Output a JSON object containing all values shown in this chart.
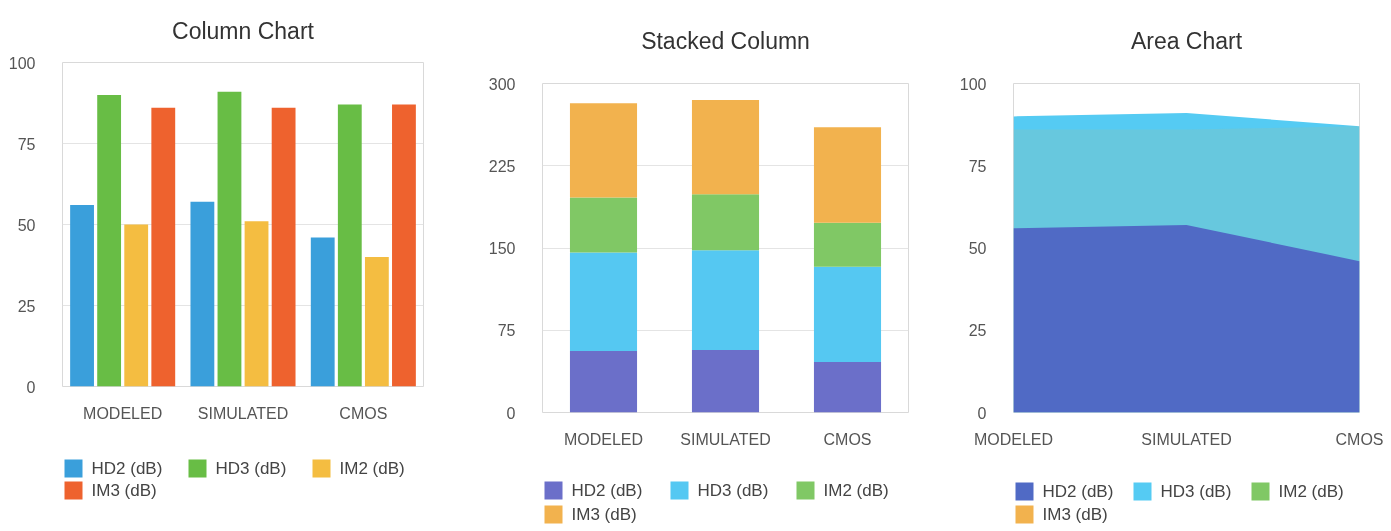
{
  "chart_data": [
    {
      "type": "bar",
      "title": "Column Chart",
      "categories": [
        "MODELED",
        "SIMULATED",
        "CMOS"
      ],
      "series": [
        {
          "name": "HD2 (dB)",
          "color": "#3a9fdb",
          "values": [
            56,
            57,
            46
          ]
        },
        {
          "name": "HD3 (dB)",
          "color": "#68bd45",
          "values": [
            90,
            91,
            87
          ]
        },
        {
          "name": "IM2  (dB)",
          "color": "#f4bd41",
          "values": [
            50,
            51,
            40
          ]
        },
        {
          "name": "IM3 (dB)",
          "color": "#ee622e",
          "values": [
            86,
            86,
            87
          ]
        }
      ],
      "ylim": [
        0,
        100
      ],
      "yticks": [
        0,
        25,
        50,
        75,
        100
      ],
      "grid": "y",
      "legend": "bottom"
    },
    {
      "type": "bar",
      "stacked": true,
      "title": "Stacked Column",
      "categories": [
        "MODELED",
        "SIMULATED",
        "CMOS"
      ],
      "series": [
        {
          "name": "HD2 (dB)",
          "color": "#6b6fc9",
          "values": [
            56,
            57,
            46
          ]
        },
        {
          "name": "HD3 (dB)",
          "color": "#55c8f2",
          "values": [
            90,
            91,
            87
          ]
        },
        {
          "name": "IM2  (dB)",
          "color": "#80c865",
          "values": [
            50,
            51,
            40
          ]
        },
        {
          "name": "IM3 (dB)",
          "color": "#f2b24e",
          "values": [
            86,
            86,
            87
          ]
        }
      ],
      "ylim": [
        0,
        300
      ],
      "yticks": [
        0,
        75,
        150,
        225,
        300
      ],
      "grid": "y",
      "legend": "bottom"
    },
    {
      "type": "area",
      "title": "Area Chart",
      "categories": [
        "MODELED",
        "SIMULATED",
        "CMOS"
      ],
      "series": [
        {
          "name": "HD2 (dB)",
          "color": "#506ac5",
          "values": [
            56,
            57,
            46
          ]
        },
        {
          "name": "HD3 (dB)",
          "color": "#55cbf3",
          "values": [
            90,
            91,
            87
          ]
        },
        {
          "name": "IM2  (dB)",
          "color": "#80c865",
          "values": [
            null,
            null,
            null
          ]
        },
        {
          "name": "IM3 (dB)",
          "color": "#f2b24e",
          "values": [
            86,
            86,
            87
          ]
        }
      ],
      "ylim": [
        0,
        100
      ],
      "yticks": [
        0,
        25,
        50,
        75,
        100
      ],
      "legend": "bottom"
    }
  ]
}
